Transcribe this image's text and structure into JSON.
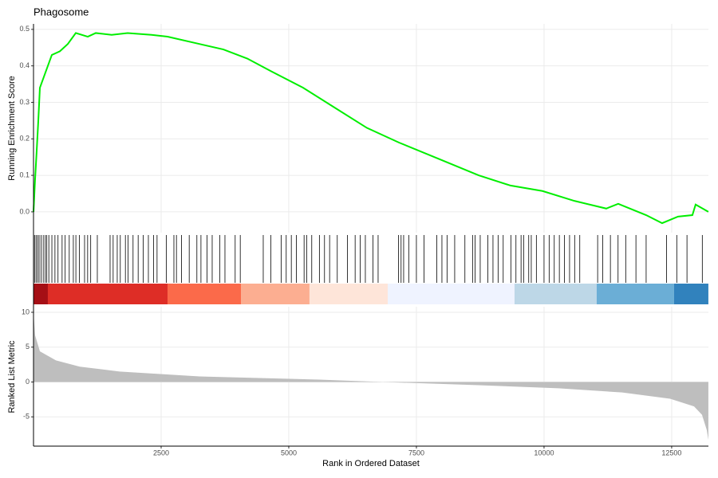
{
  "chart_data": [
    {
      "type": "line",
      "title": "Phagosome",
      "y_label": "Running Enrichment Score",
      "color": "#00ee00",
      "x": [
        0,
        31,
        62,
        94,
        125,
        203,
        359,
        516,
        672,
        828,
        1063,
        1219,
        1531,
        1844,
        2313,
        2625,
        3250,
        3719,
        4188,
        4656,
        5281,
        5906,
        6531,
        7156,
        7938,
        8719,
        9344,
        9969,
        10594,
        11219,
        11453,
        12000,
        12313,
        12625,
        12906,
        12969,
        13219
      ],
      "values": [
        0,
        0.09,
        0.166,
        0.25,
        0.34,
        0.37,
        0.43,
        0.44,
        0.46,
        0.49,
        0.48,
        0.49,
        0.485,
        0.49,
        0.485,
        0.48,
        0.46,
        0.445,
        0.42,
        0.385,
        0.34,
        0.285,
        0.23,
        0.19,
        0.145,
        0.1,
        0.072,
        0.057,
        0.03,
        0.009,
        0.022,
        -0.009,
        -0.031,
        -0.013,
        -0.009,
        0.02,
        0
      ],
      "xlim": [
        0,
        13220
      ],
      "ylim": [
        -0.057,
        0.515
      ],
      "yticks": [
        {
          "value": 0,
          "label": "0.0"
        },
        0.1,
        0.2,
        0.3,
        0.4,
        0.5
      ],
      "grid": true,
      "hits": [
        0,
        20,
        50,
        80,
        110,
        150,
        190,
        230,
        260,
        300,
        360,
        420,
        480,
        560,
        620,
        700,
        780,
        830,
        900,
        1000,
        1060,
        1120,
        1250,
        1500,
        1560,
        1640,
        1700,
        1800,
        1850,
        1950,
        2050,
        2150,
        2250,
        2350,
        2420,
        2600,
        2750,
        2800,
        2900,
        3050,
        3200,
        3280,
        3400,
        3500,
        3650,
        3750,
        3950,
        4050,
        4500,
        4650,
        4850,
        4950,
        5050,
        5150,
        5300,
        5350,
        5450,
        5600,
        5700,
        5800,
        5950,
        6150,
        6300,
        6400,
        6500,
        6650,
        6750,
        7150,
        7200,
        7250,
        7350,
        7500,
        7650,
        7900,
        8000,
        8100,
        8250,
        8450,
        8600,
        8650,
        8750,
        8900,
        9000,
        9100,
        9200,
        9350,
        9450,
        9550,
        9600,
        9700,
        9750,
        9850,
        10000,
        10100,
        10200,
        10300,
        10400,
        10500,
        10600,
        10700,
        11050,
        11150,
        11300,
        11450,
        11600,
        11800,
        12000,
        12400,
        12600,
        12800,
        13100
      ],
      "band_breaks": [
        0,
        281,
        2625,
        4063,
        5406,
        6938,
        9422,
        11031,
        12547,
        13219
      ],
      "band_colors": [
        "#a50f15",
        "#de2d26",
        "#fb6a4a",
        "#fcae91",
        "#fee5d9",
        "#eff3ff",
        "#bdd7e7",
        "#6baed6",
        "#3182bd"
      ]
    },
    {
      "type": "area",
      "y_label": "Ranked List Metric",
      "x_label": "Rank in Ordered Dataset",
      "color": "#bebebe",
      "x": [
        0,
        31,
        125,
        440,
        906,
        1688,
        3250,
        5594,
        6844,
        8719,
        10281,
        11531,
        12469,
        12938,
        13094,
        13188,
        13219
      ],
      "values": [
        10,
        6.7,
        4.4,
        3.1,
        2.2,
        1.5,
        0.8,
        0.35,
        0,
        -0.45,
        -0.9,
        -1.5,
        -2.4,
        -3.5,
        -4.7,
        -6.9,
        -8.3
      ],
      "xlim": [
        0,
        13220
      ],
      "ylim": [
        -9.2,
        10.8
      ],
      "xticks": [
        2500,
        5000,
        7500,
        10000,
        12500
      ],
      "yticks": [
        -5,
        0,
        5,
        10
      ],
      "grid": true
    }
  ]
}
